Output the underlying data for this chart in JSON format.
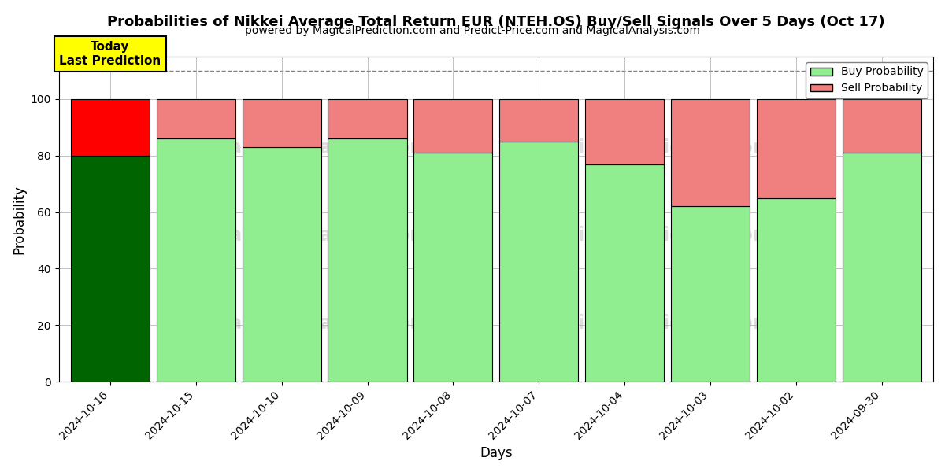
{
  "title": "Probabilities of Nikkei Average Total Return EUR (NTEH.OS) Buy/Sell Signals Over 5 Days (Oct 17)",
  "subtitle": "powered by MagicalPrediction.com and Predict-Price.com and MagicalAnalysis.com",
  "xlabel": "Days",
  "ylabel": "Probability",
  "categories": [
    "2024-10-16",
    "2024-10-15",
    "2024-10-10",
    "2024-10-09",
    "2024-10-08",
    "2024-10-07",
    "2024-10-04",
    "2024-10-03",
    "2024-10-02",
    "2024-09-30"
  ],
  "buy_values": [
    80,
    86,
    83,
    86,
    81,
    85,
    77,
    62,
    65,
    81
  ],
  "sell_values": [
    20,
    14,
    17,
    14,
    19,
    15,
    23,
    38,
    35,
    19
  ],
  "today_buy_color": "#006400",
  "today_sell_color": "#FF0000",
  "buy_color": "#90EE90",
  "sell_color": "#F08080",
  "bar_edgecolor": "#000000",
  "today_annotation_bg": "#FFFF00",
  "today_annotation_text": "Today\nLast Prediction",
  "dashed_line_y": 110,
  "ylim": [
    0,
    115
  ],
  "yticks": [
    0,
    20,
    40,
    60,
    80,
    100
  ],
  "legend_buy_label": "Buy Probability",
  "legend_sell_label": "Sell Probability",
  "background_color": "#FFFFFF",
  "grid_color": "#AAAAAA"
}
